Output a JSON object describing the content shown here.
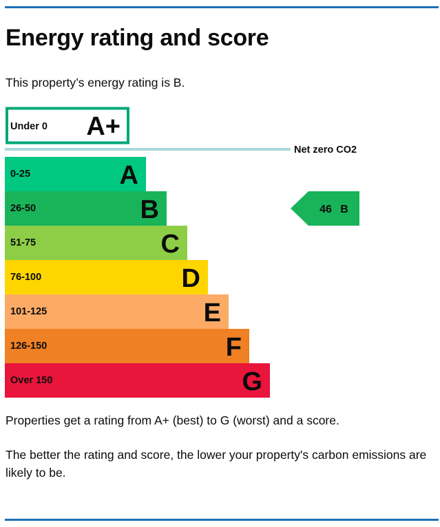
{
  "page": {
    "title": "Energy rating and score",
    "intro": "This property’s energy rating is B.",
    "footnote1": "Properties get a rating from A+ (best) to G (worst) and a score.",
    "footnote2": "The better the rating and score, the lower your property's carbon emissions are likely to be."
  },
  "chart_data": {
    "type": "bar",
    "net_zero": {
      "band": "A+",
      "range": "Under 0",
      "label": "Net zero CO2",
      "color": "#00a876"
    },
    "bands": [
      {
        "letter": "A",
        "range": "0-25",
        "max": 25,
        "color": "#00c781"
      },
      {
        "letter": "B",
        "range": "26-50",
        "max": 50,
        "color": "#19b459"
      },
      {
        "letter": "C",
        "range": "51-75",
        "max": 75,
        "color": "#8dce46"
      },
      {
        "letter": "D",
        "range": "76-100",
        "max": 100,
        "color": "#ffd500"
      },
      {
        "letter": "E",
        "range": "101-125",
        "max": 125,
        "color": "#fcaa65"
      },
      {
        "letter": "F",
        "range": "126-150",
        "max": 150,
        "color": "#ef8023"
      },
      {
        "letter": "G",
        "range": "Over 150",
        "max": null,
        "color": "#e9153b"
      }
    ],
    "current": {
      "score": "46",
      "band": "B",
      "color": "#19b459"
    },
    "divider_color": "#a8d8dd"
  }
}
